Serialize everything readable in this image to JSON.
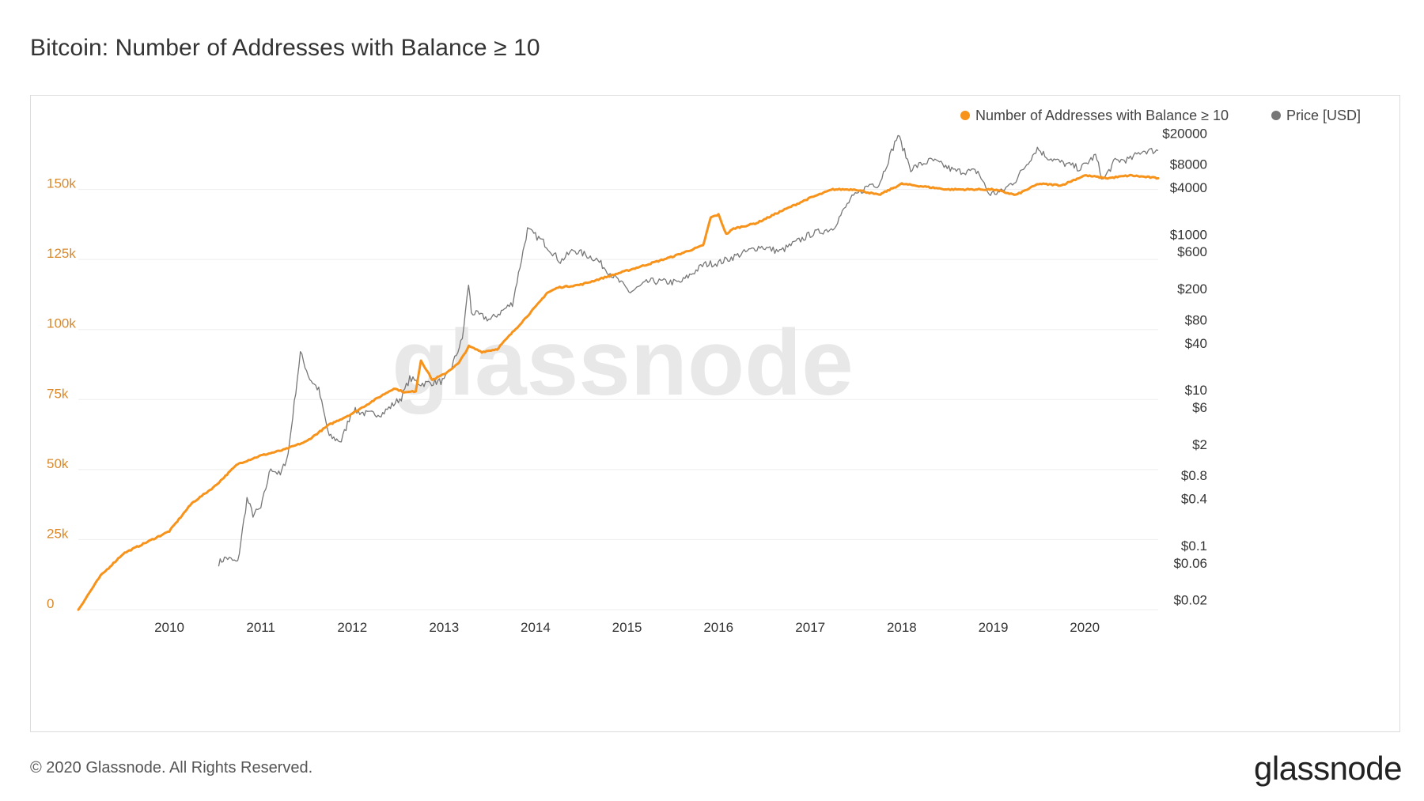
{
  "title": "Bitcoin: Number of Addresses with Balance ≥ 10",
  "footer": "© 2020 Glassnode. All Rights Reserved.",
  "brand": "glassnode",
  "watermark": "glassnode",
  "colors": {
    "series_main": "#f7931a",
    "series_price": "#777777",
    "grid": "#eeeeee",
    "left_tick": "#d9892b"
  },
  "chart_data": {
    "type": "line",
    "title": "Bitcoin: Number of Addresses with Balance ≥ 10",
    "legend": {
      "placement": "top-right",
      "entries": [
        "Number of Addresses with Balance ≥ 10",
        "Price [USD]"
      ]
    },
    "grid": true,
    "x_axis": {
      "type": "date",
      "range": [
        "2009-01-03",
        "2020-10-20"
      ],
      "tick_labels": [
        "2010",
        "2011",
        "2012",
        "2013",
        "2014",
        "2015",
        "2016",
        "2017",
        "2018",
        "2019",
        "2020"
      ]
    },
    "y_left": {
      "range": [
        0,
        175000
      ],
      "ticks": [
        0,
        25000,
        50000,
        75000,
        100000,
        125000,
        150000
      ],
      "tick_labels": [
        "0",
        "25k",
        "50k",
        "75k",
        "100k",
        "125k",
        "150k"
      ]
    },
    "y_right": {
      "scale": "log",
      "range": [
        0.015,
        30000
      ],
      "ticks": [
        0.02,
        0.06,
        0.1,
        0.4,
        0.8,
        2,
        6,
        10,
        40,
        80,
        200,
        600,
        1000,
        4000,
        8000,
        20000
      ],
      "tick_labels": [
        "$0.02",
        "$0.06",
        "$0.1",
        "$0.4",
        "$0.8",
        "$2",
        "$6",
        "$10",
        "$40",
        "$80",
        "$200",
        "$600",
        "$1000",
        "$4000",
        "$8000",
        "$20000"
      ]
    },
    "series": [
      {
        "name": "Number of Addresses with Balance ≥ 10",
        "axis": "left",
        "x": [
          "2009-01-03",
          "2009-04-01",
          "2009-07-01",
          "2009-10-01",
          "2010-01-01",
          "2010-04-01",
          "2010-07-01",
          "2010-10-01",
          "2011-01-01",
          "2011-04-01",
          "2011-07-01",
          "2011-10-01",
          "2012-01-01",
          "2012-04-01",
          "2012-06-15",
          "2012-08-01",
          "2012-09-10",
          "2012-10-01",
          "2012-11-15",
          "2013-01-01",
          "2013-03-01",
          "2013-04-10",
          "2013-06-01",
          "2013-08-01",
          "2013-11-01",
          "2014-01-10",
          "2014-02-15",
          "2014-04-01",
          "2014-07-01",
          "2015-01-01",
          "2015-07-01",
          "2015-11-01",
          "2015-12-01",
          "2016-01-01",
          "2016-02-01",
          "2016-03-01",
          "2016-06-01",
          "2016-09-01",
          "2017-01-01",
          "2017-04-01",
          "2017-07-01",
          "2017-10-01",
          "2018-01-01",
          "2018-07-01",
          "2019-01-01",
          "2019-04-01",
          "2019-07-01",
          "2019-10-01",
          "2020-01-01",
          "2020-04-01",
          "2020-07-01",
          "2020-10-20"
        ],
        "values": [
          0,
          12000,
          20000,
          24000,
          28000,
          38000,
          44000,
          52000,
          55000,
          57000,
          60000,
          66000,
          70000,
          75000,
          79000,
          77500,
          78000,
          89000,
          82000,
          84000,
          88000,
          94000,
          92000,
          93000,
          102000,
          109000,
          113000,
          115000,
          116000,
          121000,
          126000,
          130000,
          140000,
          141000,
          134000,
          136000,
          138000,
          142000,
          147000,
          150000,
          150000,
          148000,
          152000,
          150000,
          150000,
          148000,
          152000,
          151500,
          155000,
          154000,
          155000,
          154000
        ]
      },
      {
        "name": "Price [USD]",
        "axis": "right",
        "x": [
          "2010-07-17",
          "2010-08-15",
          "2010-10-01",
          "2010-11-07",
          "2010-12-01",
          "2011-01-01",
          "2011-02-10",
          "2011-03-20",
          "2011-04-20",
          "2011-06-08",
          "2011-07-15",
          "2011-08-20",
          "2011-10-01",
          "2011-11-18",
          "2012-01-01",
          "2012-03-01",
          "2012-05-01",
          "2012-07-15",
          "2012-08-17",
          "2012-10-01",
          "2013-01-01",
          "2013-02-01",
          "2013-03-15",
          "2013-04-09",
          "2013-04-20",
          "2013-07-05",
          "2013-10-01",
          "2013-11-30",
          "2014-02-01",
          "2014-04-10",
          "2014-06-01",
          "2014-09-01",
          "2014-10-01",
          "2015-01-14",
          "2015-04-01",
          "2015-08-01",
          "2015-11-04",
          "2016-01-01",
          "2016-06-15",
          "2016-09-01",
          "2017-01-01",
          "2017-04-01",
          "2017-06-10",
          "2017-09-01",
          "2017-10-01",
          "2017-12-17",
          "2018-02-06",
          "2018-05-01",
          "2018-08-01",
          "2018-11-01",
          "2018-12-15",
          "2019-02-01",
          "2019-04-01",
          "2019-06-26",
          "2019-08-01",
          "2019-10-01",
          "2019-12-15",
          "2020-02-13",
          "2020-03-13",
          "2020-05-01",
          "2020-07-01",
          "2020-08-15",
          "2020-10-20"
        ],
        "values": [
          0.06,
          0.07,
          0.06,
          0.4,
          0.25,
          0.3,
          1.0,
          0.8,
          1.5,
          30,
          14,
          10,
          2.5,
          2.2,
          5.5,
          4.9,
          5.0,
          8,
          14,
          12,
          13,
          20,
          45,
          230,
          100,
          80,
          130,
          1150,
          800,
          450,
          630,
          480,
          380,
          180,
          250,
          240,
          410,
          430,
          700,
          600,
          1000,
          1200,
          2800,
          4500,
          4300,
          19000,
          7000,
          9000,
          6500,
          6400,
          3300,
          3500,
          5000,
          12800,
          10000,
          8300,
          7000,
          10300,
          4900,
          8800,
          9200,
          11800,
          11900
        ]
      }
    ]
  }
}
